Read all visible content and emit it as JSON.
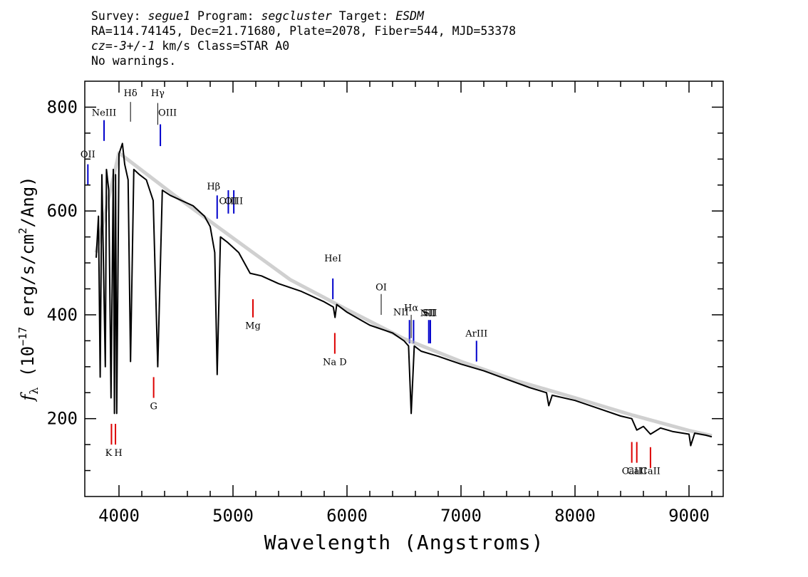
{
  "header": {
    "line1": [
      {
        "text": "Survey: ",
        "italic": false
      },
      {
        "text": "segue1",
        "italic": true
      },
      {
        "text": " Program: ",
        "italic": false
      },
      {
        "text": "segcluster",
        "italic": true
      },
      {
        "text": " Target: ",
        "italic": false
      },
      {
        "text": "ESDM",
        "italic": true
      }
    ],
    "line2": "RA=114.74145, Dec=21.71680, Plate=2078, Fiber=544, MJD=53378",
    "line3": [
      {
        "text": "cz=-3+/-1",
        "italic": true
      },
      {
        "text": " km/s Class=STAR A0",
        "italic": false
      }
    ],
    "line4": "No warnings."
  },
  "chart_data": {
    "type": "line",
    "xlabel": "Wavelength (Angstroms)",
    "ylabel": "f_λ (10^-17 erg/s/cm^2/Ang)",
    "xlim": [
      3700,
      9300
    ],
    "ylim": [
      50,
      850
    ],
    "x_ticks": [
      4000,
      5000,
      6000,
      7000,
      8000,
      9000
    ],
    "y_ticks": [
      200,
      400,
      600,
      800
    ],
    "x_tick_labels": [
      "4000",
      "5000",
      "6000",
      "7000",
      "8000",
      "9000"
    ],
    "y_tick_labels": [
      "200",
      "400",
      "600",
      "800"
    ],
    "series": [
      {
        "color": "#000000",
        "x": [
          3800,
          3820,
          3835,
          3850,
          3870,
          3880,
          3890,
          3910,
          3930,
          3950,
          3960,
          3970,
          3980,
          4000,
          4030,
          4050,
          4080,
          4101,
          4130,
          4180,
          4240,
          4300,
          4340,
          4380,
          4450,
          4550,
          4650,
          4750,
          4800,
          4840,
          4861,
          4890,
          4950,
          5050,
          5150,
          5250,
          5400,
          5600,
          5800,
          5880,
          5895,
          5910,
          6000,
          6200,
          6400,
          6500,
          6540,
          6563,
          6590,
          6650,
          6800,
          7000,
          7200,
          7400,
          7600,
          7750,
          7770,
          7800,
          8000,
          8200,
          8400,
          8498,
          8542,
          8600,
          8662,
          8750,
          8860,
          9000,
          9015,
          9050,
          9150,
          9200
        ],
        "y": [
          510,
          590,
          280,
          670,
          420,
          300,
          680,
          640,
          240,
          680,
          210,
          670,
          210,
          710,
          730,
          690,
          660,
          310,
          680,
          670,
          660,
          620,
          300,
          640,
          630,
          620,
          610,
          590,
          570,
          520,
          285,
          550,
          540,
          520,
          480,
          475,
          460,
          445,
          425,
          415,
          395,
          420,
          405,
          380,
          365,
          350,
          340,
          210,
          340,
          330,
          320,
          305,
          292,
          276,
          260,
          250,
          225,
          245,
          235,
          220,
          205,
          200,
          178,
          185,
          170,
          182,
          175,
          170,
          148,
          172,
          168,
          165
        ]
      },
      {
        "name": "",
        "color": "#b0b0b0",
        "x": [
          3800,
          4000,
          4500,
          5000,
          5500,
          6000,
          6500,
          7000,
          7500,
          8000,
          8500,
          9000,
          9200
        ],
        "y": [
          520,
          712,
          628,
          548,
          468,
          410,
          354,
          310,
          272,
          240,
          207,
          177,
          167
        ]
      }
    ],
    "lines": [
      {
        "label": "OII",
        "wavelength": 3727,
        "color": "blue",
        "y": [
          650,
          690
        ],
        "label_y": 710,
        "label_dx": 0
      },
      {
        "label": "NeIII",
        "wavelength": 3869,
        "color": "blue",
        "y": [
          735,
          775
        ],
        "label_y": 790,
        "label_dx": 0
      },
      {
        "label": "Hδ",
        "wavelength": 4101,
        "color": "black",
        "y": [
          772,
          810
        ],
        "label_y": 828,
        "label_dx": 0
      },
      {
        "label": "Hγ",
        "wavelength": 4340,
        "color": "black",
        "y": [
          766,
          808
        ],
        "label_y": 828,
        "label_dx": 0
      },
      {
        "label": "OIII",
        "wavelength": 4363,
        "color": "blue",
        "y": [
          725,
          767
        ],
        "label_y": 790,
        "label_dx": 10
      },
      {
        "label": "Hβ",
        "wavelength": 4861,
        "color": "blue",
        "y": [
          585,
          630
        ],
        "label_y": 648,
        "label_dx": -5
      },
      {
        "label": "OIII",
        "wavelength": 4959,
        "color": "blue",
        "y": [
          595,
          640
        ],
        "label_y": 620,
        "label_dx": 0
      },
      {
        "label": "OIII",
        "wavelength": 5007,
        "color": "blue",
        "y": [
          595,
          640
        ],
        "label_y": 620,
        "label_dx": 0
      },
      {
        "label": "Mg",
        "wavelength": 5175,
        "color": "red",
        "y": [
          395,
          430
        ],
        "label_y": 380,
        "label_dx": 0
      },
      {
        "label": "HeI",
        "wavelength": 5876,
        "color": "blue",
        "y": [
          430,
          470
        ],
        "label_y": 510,
        "label_dx": 0
      },
      {
        "label": "Na D",
        "wavelength": 5893,
        "color": "red",
        "y": [
          325,
          365
        ],
        "label_y": 310,
        "label_dx": 0
      },
      {
        "label": "OI",
        "wavelength": 6300,
        "color": "black",
        "y": [
          400,
          440
        ],
        "label_y": 454,
        "label_dx": 0
      },
      {
        "label": "NII",
        "wavelength": 6548,
        "color": "blue",
        "y": [
          345,
          390
        ],
        "label_y": 406,
        "label_dx": -12
      },
      {
        "label": "Hα",
        "wavelength": 6563,
        "color": "black",
        "y": [
          355,
          400
        ],
        "label_y": 414,
        "label_dx": 0
      },
      {
        "label": "NII",
        "wavelength": 6584,
        "color": "blue",
        "y": [
          345,
          390
        ],
        "label_y": 404,
        "label_dx": 20
      },
      {
        "label": "SII",
        "wavelength": 6717,
        "color": "blue",
        "y": [
          345,
          390
        ],
        "label_y": 405,
        "label_dx": 0
      },
      {
        "label": "SII",
        "wavelength": 6731,
        "color": "blue",
        "y": [
          345,
          390
        ],
        "label_y": 405,
        "label_dx": 0
      },
      {
        "label": "ArIII",
        "wavelength": 7136,
        "color": "blue",
        "y": [
          310,
          350
        ],
        "label_y": 365,
        "label_dx": 0
      },
      {
        "label": "K",
        "wavelength": 3934,
        "color": "red",
        "y": [
          150,
          190
        ],
        "label_y": 135,
        "label_dx": -4
      },
      {
        "label": "H",
        "wavelength": 3969,
        "color": "red",
        "y": [
          150,
          190
        ],
        "label_y": 135,
        "label_dx": 4
      },
      {
        "label": "G",
        "wavelength": 4304,
        "color": "red",
        "y": [
          240,
          280
        ],
        "label_y": 225,
        "label_dx": 0
      },
      {
        "label": "CaII",
        "wavelength": 8498,
        "color": "red",
        "y": [
          115,
          155
        ],
        "label_y": 100,
        "label_dx": 0
      },
      {
        "label": "CaII",
        "wavelength": 8542,
        "color": "red",
        "y": [
          115,
          155
        ],
        "label_y": 100,
        "label_dx": 0
      },
      {
        "label": "CaII",
        "wavelength": 8662,
        "color": "red",
        "y": [
          105,
          145
        ],
        "label_y": 100,
        "label_dx": 0
      }
    ]
  }
}
